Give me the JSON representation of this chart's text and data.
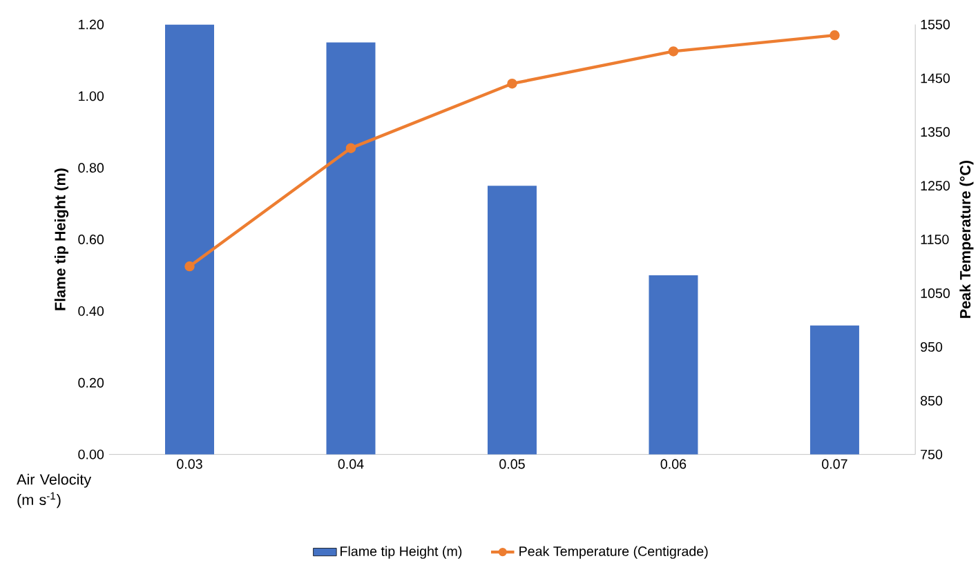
{
  "chart_data": {
    "type": "bar",
    "xlabel": "Air Velocity (m s$^{-1}$)",
    "ylabel": "Flame tip Height (m)",
    "y2label": "Peak Temperature (°C)",
    "categories": [
      "0.03",
      "0.04",
      "0.05",
      "0.06",
      "0.07"
    ],
    "series": [
      {
        "name": "Flame tip Height (m)",
        "color": "#4472c4",
        "values": [
          1.2,
          1.15,
          0.75,
          0.5,
          0.36
        ]
      },
      {
        "name": "Peak Temperature (Centigrade)",
        "type": "line",
        "axis": "y2",
        "color": "#ed7d31",
        "marker": "circle",
        "values": [
          1100,
          1320,
          1440,
          1500,
          1530
        ]
      }
    ],
    "ylim": [
      0,
      1.2
    ],
    "yticks": [
      {
        "value": 0,
        "label": "0.00"
      },
      {
        "value": 0.2,
        "label": "0.20"
      },
      {
        "value": 0.4,
        "label": "0.40"
      },
      {
        "value": 0.6,
        "label": "0.60"
      },
      {
        "value": 0.8,
        "label": "0.80"
      },
      {
        "value": 1.0,
        "label": "1.00"
      },
      {
        "value": 1.2,
        "label": "1.20"
      }
    ],
    "y2lim": [
      750,
      1550
    ],
    "y2ticks": [
      750,
      850,
      950,
      1050,
      1150,
      1250,
      1350,
      1450,
      1550
    ],
    "legend": "bottom"
  }
}
